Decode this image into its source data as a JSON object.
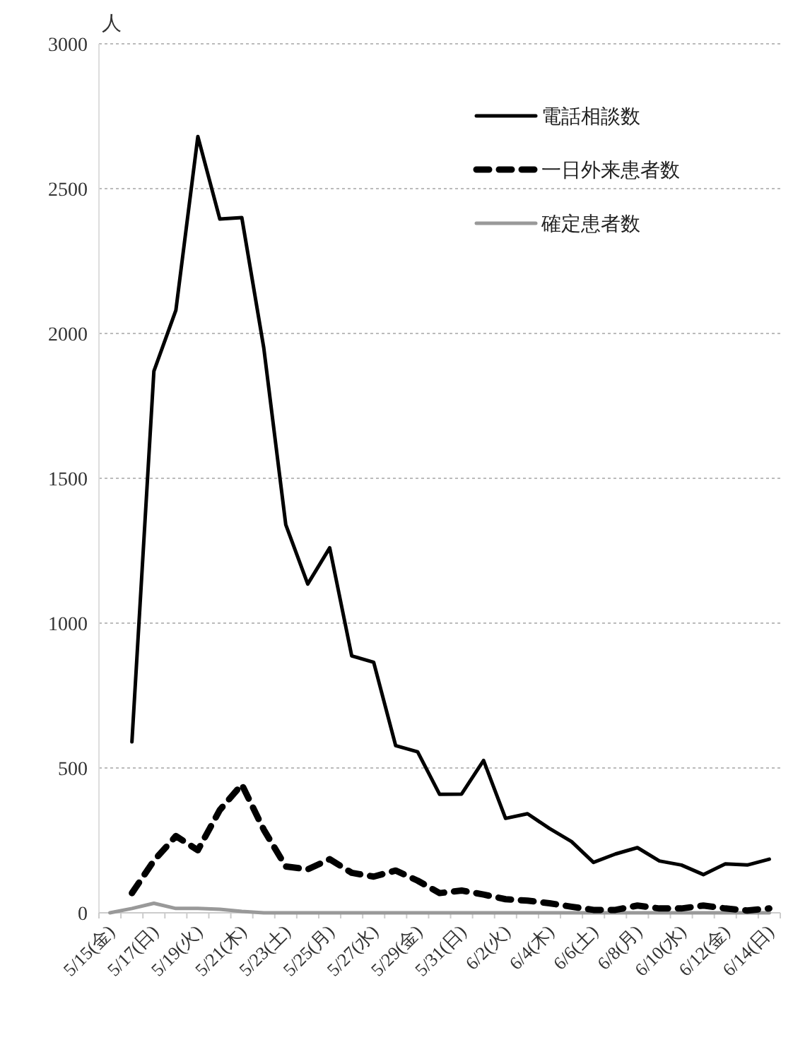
{
  "chart_data": {
    "type": "line",
    "ylabel": "人",
    "ylim": [
      0,
      3000
    ],
    "yticks": [
      0,
      500,
      1000,
      1500,
      2000,
      2500,
      3000
    ],
    "grid": "y",
    "legend": "top right",
    "categories": [
      "5/15(金)",
      null,
      "5/17(日)",
      null,
      "5/19(火)",
      null,
      "5/21(木)",
      null,
      "5/23(土)",
      null,
      "5/25(月)",
      null,
      "5/27(水)",
      null,
      "5/29(金)",
      null,
      "5/31(日)",
      null,
      "6/2(火)",
      null,
      "6/4(木)",
      null,
      "6/6(土)",
      null,
      "6/8(月)",
      null,
      "6/10(水)",
      null,
      "6/12(金)",
      null,
      "6/14(日)"
    ],
    "series": [
      {
        "name": "電話相談数",
        "color": "#000000",
        "line_style": "solid",
        "values": [
          null,
          590,
          1870,
          2080,
          2680,
          2395,
          2400,
          1950,
          1340,
          1135,
          1260,
          887,
          865,
          577,
          556,
          409,
          410,
          526,
          326,
          342,
          291,
          246,
          174,
          203,
          225,
          179,
          165,
          132,
          169,
          165,
          185
        ]
      },
      {
        "name": "一日外来患者数",
        "color": "#000000",
        "line_style": "dashed",
        "values": [
          null,
          68,
          180,
          265,
          216,
          355,
          443,
          287,
          160,
          150,
          185,
          138,
          125,
          146,
          111,
          68,
          77,
          63,
          47,
          42,
          33,
          21,
          10,
          10,
          25,
          15,
          15,
          25,
          15,
          8,
          15
        ]
      },
      {
        "name": "確定患者数",
        "color": "#999999",
        "line_style": "solid",
        "values": [
          0,
          15,
          33,
          15,
          15,
          12,
          5,
          0,
          0,
          0,
          0,
          0,
          0,
          0,
          0,
          0,
          0,
          0,
          0,
          0,
          0,
          0,
          0,
          0,
          0,
          0,
          0,
          0,
          0,
          0,
          0
        ]
      }
    ]
  }
}
